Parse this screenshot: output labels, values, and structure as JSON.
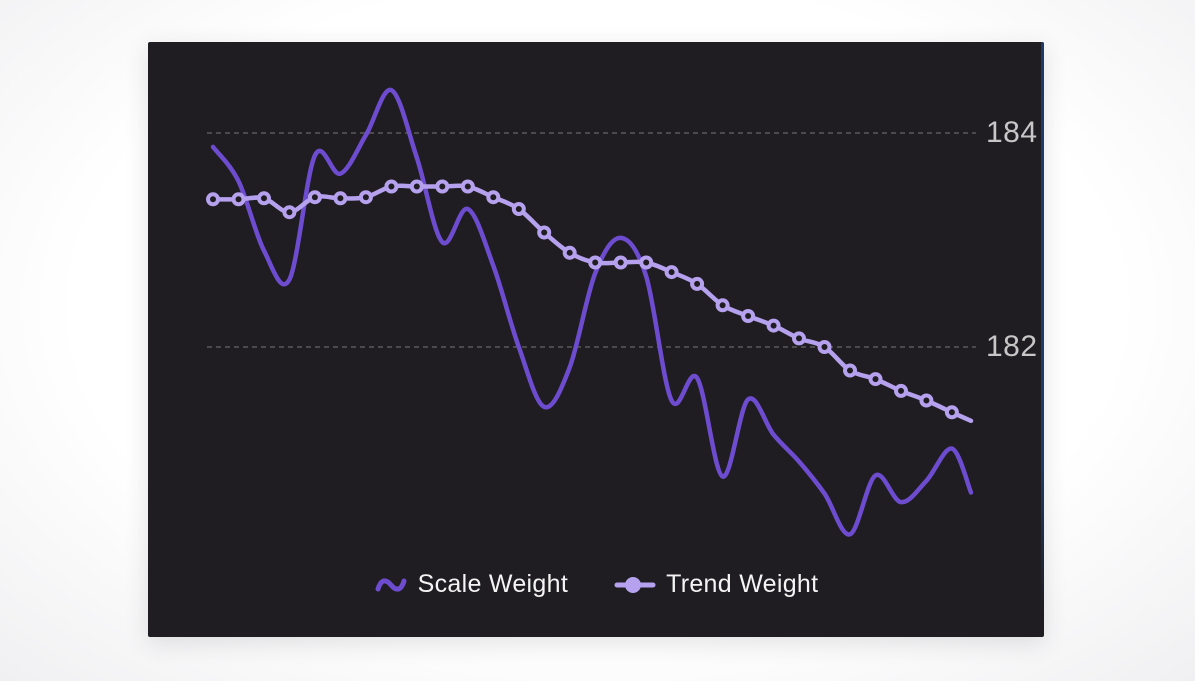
{
  "colors": {
    "page_background": "#f0f0f2",
    "panel_background": "#1f1d21",
    "scale_line": "#6e4ccf",
    "trend_line": "#b5a1ee",
    "grid_line": "#666666",
    "tick_label": "#c7c7c7",
    "legend_text": "#f4f4f4",
    "right_accent": "#1d3a68"
  },
  "chart_data": {
    "type": "line",
    "title": "",
    "x_count": 30,
    "x_axis_labels_visible": false,
    "y_gridlines": [
      184,
      182
    ],
    "y_tick_labels": [
      "184",
      "182"
    ],
    "ylim": [
      179.3,
      184.9
    ],
    "grid_style": "dashed",
    "legend_position": "bottom",
    "series": [
      {
        "name": "Scale Weight",
        "type": "smooth-line",
        "color": "#6e4ccf",
        "values": [
          183.87,
          183.55,
          182.9,
          182.63,
          183.79,
          183.62,
          183.98,
          184.4,
          183.77,
          182.98,
          183.29,
          182.76,
          182.0,
          181.44,
          181.81,
          182.69,
          183.02,
          182.66,
          181.5,
          181.71,
          180.79,
          181.51,
          181.18,
          180.93,
          180.63,
          180.25,
          180.8,
          180.55,
          180.75,
          181.05
        ]
      },
      {
        "name": "Trend Weight",
        "type": "smooth-line-ring-markers",
        "color": "#b5a1ee",
        "values": [
          183.38,
          183.38,
          183.39,
          183.26,
          183.4,
          183.39,
          183.4,
          183.5,
          183.5,
          183.5,
          183.5,
          183.4,
          183.29,
          183.07,
          182.88,
          182.79,
          182.79,
          182.79,
          182.7,
          182.59,
          182.39,
          182.29,
          182.2,
          182.08,
          182.0,
          181.78,
          181.7,
          181.59,
          181.5,
          181.39
        ]
      }
    ],
    "line_tail_values": {
      "scale_weight": 180.64,
      "trend_weight": 181.31
    }
  }
}
